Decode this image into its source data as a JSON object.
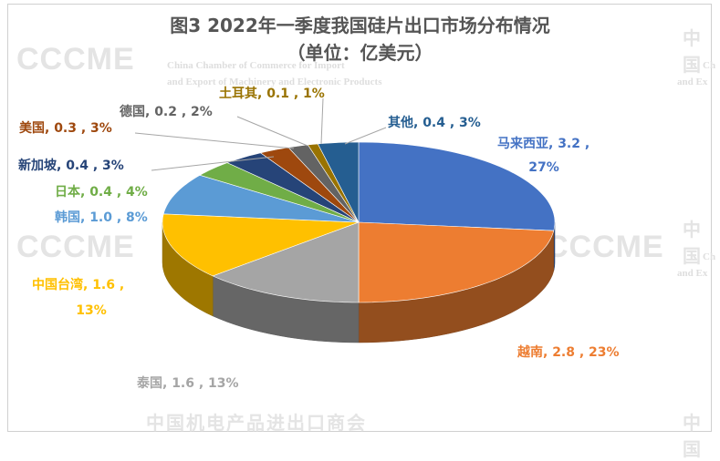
{
  "chart_data": {
    "type": "pie",
    "title": "图3 2022年一季度我国硅片出口市场分布情况",
    "subtitle": "（单位：亿美元）",
    "unit": "亿美元",
    "slices": [
      {
        "name": "马来西亚",
        "value": 3.2,
        "pct": "27%",
        "color": "#4472C4",
        "label": "马来西亚, 3.2 ,",
        "label2": "27%"
      },
      {
        "name": "越南",
        "value": 2.8,
        "pct": "23%",
        "color": "#ED7D31",
        "label": "越南, 2.8 , 23%"
      },
      {
        "name": "泰国",
        "value": 1.6,
        "pct": "13%",
        "color": "#A5A5A5",
        "label": "泰国, 1.6 , 13%"
      },
      {
        "name": "中国台湾",
        "value": 1.6,
        "pct": "13%",
        "color": "#FFC000",
        "label": "中国台湾, 1.6 ,",
        "label2": "13%"
      },
      {
        "name": "韩国",
        "value": 1.0,
        "pct": "8%",
        "color": "#5B9BD5",
        "label": "韩国, 1.0 , 8%"
      },
      {
        "name": "日本",
        "value": 0.4,
        "pct": "4%",
        "color": "#70AD47",
        "label": "日本, 0.4 , 4%"
      },
      {
        "name": "新加坡",
        "value": 0.4,
        "pct": "3%",
        "color": "#264478",
        "label": "新加坡, 0.4 , 3%"
      },
      {
        "name": "美国",
        "value": 0.3,
        "pct": "3%",
        "color": "#9E480E",
        "label": "美国, 0.3 , 3%"
      },
      {
        "name": "德国",
        "value": 0.2,
        "pct": "2%",
        "color": "#636363",
        "label": "德国, 0.2 , 2%"
      },
      {
        "name": "土耳其",
        "value": 0.1,
        "pct": "1%",
        "color": "#997300",
        "label": "土耳其, 0.1 , 1%"
      },
      {
        "name": "其他",
        "value": 0.4,
        "pct": "3%",
        "color": "#255E91",
        "label": "其他, 0.4 , 3%"
      }
    ]
  },
  "watermark": {
    "logo": "CCCME",
    "org_cn": "中国机电产品进出口商会",
    "org_en_1": "China Chamber of Commerce for Import",
    "org_en_2": "and Export of Machinery and Electronic Products",
    "cn_short": "中国",
    "en_short_1": "Ch",
    "en_short_2": "and Ex"
  }
}
